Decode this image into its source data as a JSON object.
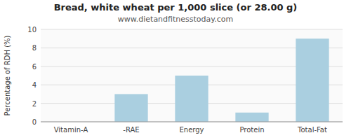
{
  "chart_data": {
    "type": "bar",
    "title": "Bread, white wheat per 1,000 slice (or 28.00 g)",
    "subtitle": "www.dietandfitnesstoday.com",
    "categories": [
      "Vitamin-A",
      "-RAE",
      "Energy",
      "Protein",
      "Total-Fat"
    ],
    "values": [
      0.0,
      3.0,
      5.0,
      1.0,
      9.0
    ],
    "color": "#aacfe0",
    "ylabel": "Percentage of RDH (%)",
    "ylim": [
      0,
      10
    ],
    "yticks": [
      0,
      2,
      4,
      6,
      8,
      10
    ],
    "grid": true
  }
}
